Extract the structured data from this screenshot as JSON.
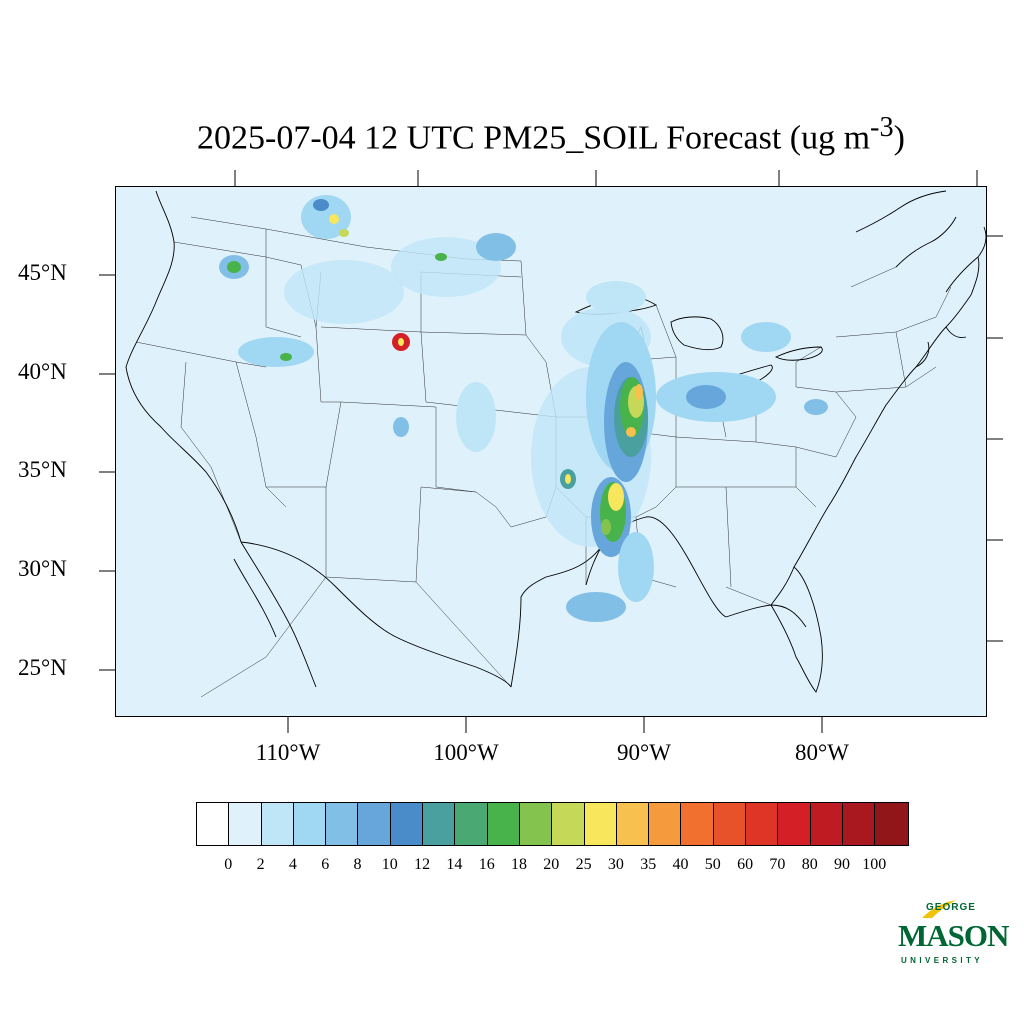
{
  "title": {
    "main": "2025-07-04 12 UTC PM25_SOIL Forecast (ug m",
    "superscript": "-3",
    "close": ")"
  },
  "map": {
    "region": "Contiguous United States",
    "background_color": "#dff1fb",
    "lat_labels": [
      "45°N",
      "40°N",
      "35°N",
      "30°N",
      "25°N"
    ],
    "lon_labels": [
      "110°W",
      "100°W",
      "90°W",
      "80°W"
    ]
  },
  "colorbar": {
    "colors": [
      "#ffffff",
      "#dff1fb",
      "#bfe6f7",
      "#a0d7f3",
      "#82bfe7",
      "#66a6da",
      "#4a8bc9",
      "#49a09e",
      "#4aa872",
      "#49b34b",
      "#85c34f",
      "#c6d857",
      "#f8e65d",
      "#f8c04f",
      "#f59b3e",
      "#f17030",
      "#e8522a",
      "#de3527",
      "#d41f26",
      "#be1b22",
      "#a8181e",
      "#91161a"
    ],
    "labels": [
      "0",
      "2",
      "4",
      "6",
      "8",
      "10",
      "12",
      "14",
      "16",
      "18",
      "20",
      "25",
      "30",
      "35",
      "40",
      "50",
      "60",
      "70",
      "80",
      "90",
      "100"
    ]
  },
  "logo": {
    "line1": "GEORGE",
    "line2": "MASON",
    "line3": "UNIVERSITY"
  }
}
